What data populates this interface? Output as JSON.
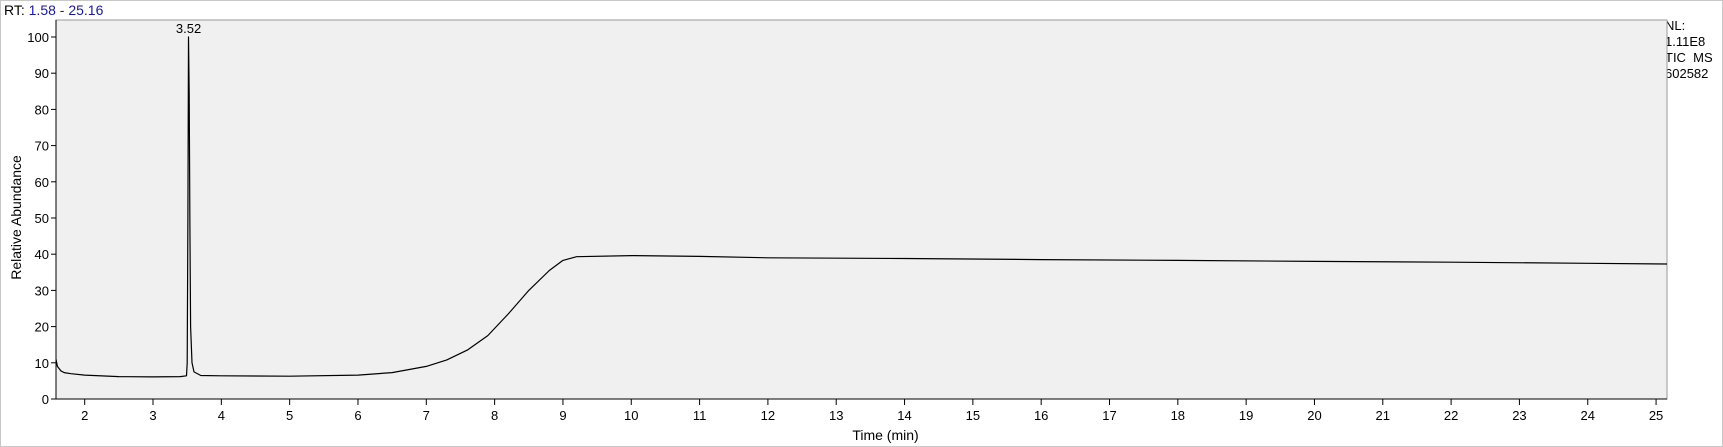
{
  "header": {
    "rt_label": "RT:",
    "rt_range": "1.58 - 25.16"
  },
  "info_box": {
    "nl_label": "NL:",
    "nl_value": "1.11E8",
    "trace": "TIC  MS",
    "sample": "602582"
  },
  "chart_data": {
    "type": "line",
    "title": "",
    "xlabel": "Time (min)",
    "ylabel": "Relative Abundance",
    "xlim": [
      1.58,
      25.16
    ],
    "ylim": [
      0,
      100
    ],
    "xticks": [
      2,
      3,
      4,
      5,
      6,
      7,
      8,
      9,
      10,
      11,
      12,
      13,
      14,
      15,
      16,
      17,
      18,
      19,
      20,
      21,
      22,
      23,
      24,
      25
    ],
    "yticks": [
      0,
      10,
      20,
      30,
      40,
      50,
      60,
      70,
      80,
      90,
      100
    ],
    "grid": false,
    "plot_background": "#f0f0f0",
    "line_color": "#000000",
    "peak_annotations": [
      {
        "x": 3.52,
        "y": 100,
        "label": "3.52"
      }
    ],
    "series": [
      {
        "x": [
          1.58,
          1.6,
          1.65,
          1.7,
          1.8,
          2.0,
          2.5,
          3.0,
          3.4,
          3.49,
          3.5,
          3.51,
          3.52,
          3.53,
          3.54,
          3.55,
          3.57,
          3.6,
          3.7,
          4.0,
          5.0,
          6.0,
          6.5,
          7.0,
          7.3,
          7.6,
          7.9,
          8.2,
          8.5,
          8.8,
          9.0,
          9.2,
          10.0,
          11.0,
          12.0,
          14.0,
          16.0,
          18.0,
          20.0,
          22.0,
          24.0,
          25.16
        ],
        "y": [
          11,
          9,
          7.8,
          7.3,
          7.0,
          6.6,
          6.2,
          6.1,
          6.2,
          6.4,
          10,
          50,
          100,
          84,
          48,
          20,
          10,
          7.5,
          6.5,
          6.4,
          6.3,
          6.6,
          7.3,
          9.0,
          10.8,
          13.5,
          17.5,
          23.5,
          30,
          35.5,
          38.3,
          39.3,
          39.6,
          39.4,
          39.0,
          38.8,
          38.5,
          38.3,
          38.0,
          37.8,
          37.5,
          37.3
        ]
      }
    ]
  }
}
